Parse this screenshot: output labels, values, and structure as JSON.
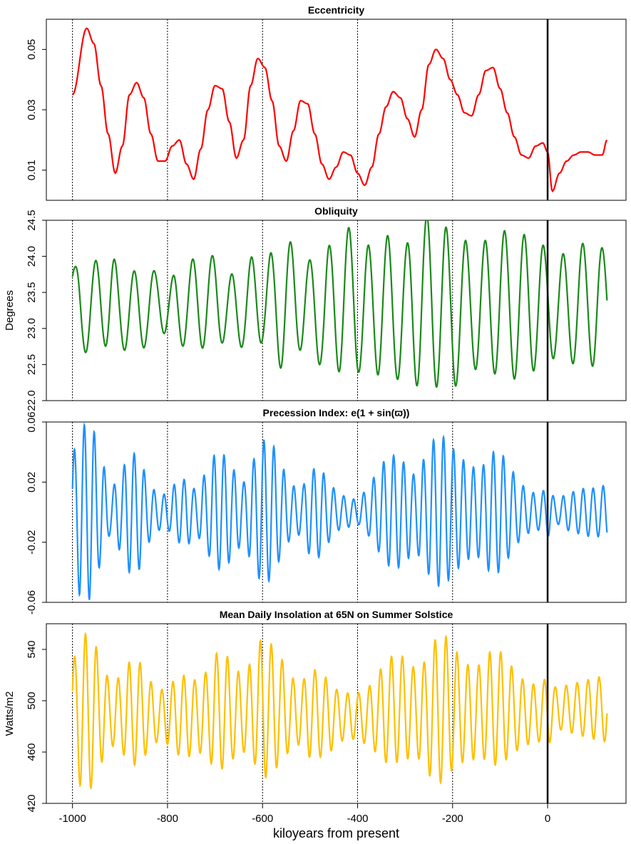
{
  "chart_data": [
    {
      "type": "line",
      "title": "Eccentricity",
      "ylabel": "",
      "ylim": [
        0.0,
        0.06
      ],
      "yticks": [
        0.01,
        0.03,
        0.05
      ],
      "ytick_labels": [
        "0.01",
        "0.03",
        "0.05"
      ],
      "color": "#ff0000",
      "series": [
        {
          "x": [
            -1000,
            -970,
            -955,
            -940,
            -925,
            -910,
            -895,
            -880,
            -865,
            -850,
            -835,
            -820,
            -805,
            -790,
            -775,
            -760,
            -745,
            -730,
            -715,
            -700,
            -685,
            -670,
            -655,
            -640,
            -625,
            -610,
            -595,
            -580,
            -565,
            -550,
            -535,
            -520,
            -505,
            -490,
            -475,
            -460,
            -445,
            -430,
            -415,
            -400,
            -385,
            -370,
            -355,
            -340,
            -325,
            -310,
            -295,
            -280,
            -265,
            -250,
            -235,
            -220,
            -205,
            -190,
            -175,
            -160,
            -145,
            -130,
            -115,
            -100,
            -85,
            -70,
            -55,
            -40,
            -25,
            -10,
            0,
            10,
            25,
            40,
            55,
            70,
            85,
            100,
            115,
            125
          ],
          "y": [
            0.035,
            0.057,
            0.052,
            0.038,
            0.022,
            0.009,
            0.018,
            0.035,
            0.039,
            0.034,
            0.022,
            0.013,
            0.013,
            0.018,
            0.02,
            0.012,
            0.007,
            0.017,
            0.03,
            0.038,
            0.037,
            0.026,
            0.014,
            0.02,
            0.038,
            0.047,
            0.044,
            0.033,
            0.018,
            0.013,
            0.023,
            0.033,
            0.032,
            0.022,
            0.012,
            0.007,
            0.011,
            0.016,
            0.015,
            0.009,
            0.005,
            0.011,
            0.022,
            0.031,
            0.036,
            0.034,
            0.027,
            0.021,
            0.03,
            0.045,
            0.05,
            0.047,
            0.04,
            0.035,
            0.029,
            0.028,
            0.035,
            0.043,
            0.044,
            0.037,
            0.029,
            0.021,
            0.015,
            0.014,
            0.018,
            0.019,
            0.016,
            0.003,
            0.009,
            0.013,
            0.015,
            0.016,
            0.016,
            0.015,
            0.015,
            0.02
          ]
        }
      ],
      "oscillation": null
    },
    {
      "type": "line",
      "title": "Obliquity",
      "ylabel": "Degrees",
      "ylim": [
        22.0,
        24.5
      ],
      "yticks": [
        22.0,
        22.5,
        23.0,
        23.5,
        24.0,
        24.5
      ],
      "ytick_labels": [
        "22.0",
        "22.5",
        "23.0",
        "23.5",
        "24.0",
        "24.5"
      ],
      "color": "#1a8a1a",
      "series": [
        {
          "x": [
            -1000,
            -980,
            -960,
            -940,
            -920,
            -900,
            -880,
            -860,
            -840,
            -820,
            -800,
            -780,
            -760,
            -740,
            -720,
            -700,
            -680,
            -660,
            -640,
            -620,
            -600,
            -580,
            -560,
            -540,
            -520,
            -500,
            -480,
            -460,
            -440,
            -420,
            -400,
            -380,
            -360,
            -340,
            -320,
            -300,
            -280,
            -260,
            -240,
            -220,
            -200,
            -180,
            -160,
            -140,
            -120,
            -100,
            -80,
            -60,
            -40,
            -20,
            0,
            20,
            40,
            60,
            80,
            100,
            125
          ],
          "y": [
            23.6,
            23.2,
            23.3,
            23.4,
            23.4,
            23.2,
            23.3,
            23.2,
            23.3,
            23.4,
            23.3,
            23.2,
            23.4,
            23.3,
            23.4,
            23.4,
            23.3,
            23.2,
            23.3,
            23.4,
            23.4,
            23.3,
            23.3,
            23.4,
            23.4,
            23.3,
            23.2,
            23.3,
            23.3,
            23.5,
            23.3,
            23.2,
            23.3,
            23.4,
            23.2,
            23.2,
            23.3,
            23.4,
            23.4,
            23.3,
            23.2,
            23.3,
            23.3,
            23.3,
            23.3,
            23.4,
            23.3,
            23.3,
            23.3,
            23.4,
            23.3,
            23.3,
            23.3,
            23.3,
            23.4,
            23.3,
            23.4
          ],
          "amplitude": [
            0.3,
            0.55,
            0.6,
            0.6,
            0.7,
            0.55,
            0.55,
            0.55,
            0.5,
            0.4,
            0.4,
            0.55,
            0.6,
            0.65,
            0.65,
            0.6,
            0.5,
            0.55,
            0.55,
            0.6,
            0.6,
            0.75,
            0.85,
            0.8,
            0.7,
            0.65,
            0.7,
            0.85,
            0.9,
            0.9,
            0.9,
            0.95,
            0.95,
            0.9,
            0.9,
            0.95,
            1.1,
            1.15,
            1.2,
            1.15,
            1.05,
            0.95,
            0.85,
            0.9,
            0.95,
            1.0,
            1.0,
            1.0,
            1.0,
            0.9,
            0.75,
            0.7,
            0.75,
            0.8,
            0.8,
            0.85,
            0.7
          ]
        }
      ],
      "oscillation": {
        "period": 41
      }
    },
    {
      "type": "line",
      "title": "Precession Index:",
      "title_formula": "e(1 + sin(ϖ))",
      "ylabel": "",
      "ylim": [
        -0.06,
        0.06
      ],
      "yticks": [
        -0.06,
        -0.02,
        0.02,
        0.06
      ],
      "ytick_labels": [
        "-0.06",
        "-0.02",
        "0.02",
        "0.06"
      ],
      "color": "#1e90ff",
      "series": [
        {
          "x": [
            -1000,
            -980,
            -960,
            -940,
            -920,
            -900,
            -880,
            -860,
            -840,
            -820,
            -800,
            -780,
            -760,
            -740,
            -720,
            -700,
            -680,
            -660,
            -640,
            -620,
            -600,
            -580,
            -560,
            -540,
            -520,
            -500,
            -480,
            -460,
            -440,
            -420,
            -400,
            -380,
            -360,
            -340,
            -320,
            -300,
            -280,
            -260,
            -240,
            -220,
            -200,
            -180,
            -160,
            -140,
            -120,
            -100,
            -80,
            -60,
            -40,
            -20,
            0,
            20,
            40,
            60,
            80,
            100,
            125
          ],
          "y": [
            0.0,
            0.0,
            0.0,
            0.0,
            0.0,
            0.0,
            0.0,
            0.0,
            0.0,
            0.0,
            0.0,
            0.0,
            0.0,
            0.0,
            0.0,
            0.0,
            0.0,
            0.0,
            0.0,
            0.0,
            0.0,
            0.0,
            0.0,
            0.0,
            0.0,
            0.0,
            0.0,
            0.0,
            0.0,
            0.0,
            0.0,
            0.0,
            0.0,
            0.0,
            0.0,
            0.0,
            0.0,
            0.0,
            0.0,
            0.0,
            0.0,
            0.0,
            0.0,
            0.0,
            0.0,
            0.0,
            0.0,
            0.0,
            0.0,
            0.0,
            0.0,
            0.0,
            0.0,
            0.0,
            0.0,
            0.0,
            0.0
          ],
          "amplitude": [
            0.04,
            0.058,
            0.058,
            0.035,
            0.015,
            0.025,
            0.04,
            0.038,
            0.02,
            0.012,
            0.012,
            0.02,
            0.022,
            0.015,
            0.025,
            0.038,
            0.038,
            0.028,
            0.02,
            0.035,
            0.048,
            0.045,
            0.03,
            0.018,
            0.015,
            0.028,
            0.03,
            0.02,
            0.012,
            0.01,
            0.008,
            0.015,
            0.025,
            0.035,
            0.038,
            0.033,
            0.025,
            0.035,
            0.048,
            0.05,
            0.042,
            0.035,
            0.03,
            0.03,
            0.04,
            0.04,
            0.03,
            0.02,
            0.014,
            0.012,
            0.016,
            0.008,
            0.012,
            0.014,
            0.016,
            0.016,
            0.018
          ]
        }
      ],
      "oscillation": {
        "period": 21
      }
    },
    {
      "type": "line",
      "title": "Mean Daily Insolation at 65N on Summer Solstice",
      "ylabel": "Watts/m2",
      "ylim": [
        420,
        560
      ],
      "yticks": [
        420,
        460,
        500,
        540
      ],
      "ytick_labels": [
        "420",
        "460",
        "500",
        "540"
      ],
      "color": "#ffbf00",
      "series": [
        {
          "x": [
            -1000,
            -980,
            -960,
            -940,
            -920,
            -900,
            -880,
            -860,
            -840,
            -820,
            -800,
            -780,
            -760,
            -740,
            -720,
            -700,
            -680,
            -660,
            -640,
            -620,
            -600,
            -580,
            -560,
            -540,
            -520,
            -500,
            -480,
            -460,
            -440,
            -420,
            -400,
            -380,
            -360,
            -340,
            -320,
            -300,
            -280,
            -260,
            -240,
            -220,
            -200,
            -180,
            -160,
            -140,
            -120,
            -100,
            -80,
            -60,
            -40,
            -20,
            0,
            20,
            40,
            60,
            80,
            100,
            125
          ],
          "y": [
            492,
            492,
            492,
            492,
            490,
            490,
            490,
            490,
            488,
            488,
            488,
            488,
            488,
            488,
            490,
            492,
            492,
            490,
            490,
            492,
            494,
            494,
            492,
            490,
            490,
            490,
            490,
            488,
            488,
            488,
            488,
            488,
            490,
            492,
            494,
            494,
            492,
            490,
            492,
            494,
            494,
            492,
            490,
            492,
            494,
            494,
            492,
            490,
            490,
            490,
            492,
            494,
            494,
            494,
            494,
            494,
            494
          ],
          "amplitude": [
            40,
            60,
            60,
            40,
            25,
            28,
            40,
            40,
            28,
            20,
            22,
            30,
            32,
            28,
            32,
            45,
            45,
            35,
            30,
            40,
            55,
            50,
            40,
            28,
            24,
            34,
            34,
            28,
            20,
            18,
            18,
            22,
            30,
            40,
            42,
            40,
            34,
            40,
            55,
            58,
            48,
            40,
            36,
            36,
            44,
            44,
            36,
            28,
            24,
            22,
            26,
            16,
            18,
            20,
            22,
            24,
            26
          ]
        }
      ],
      "oscillation": {
        "period": 23
      }
    }
  ],
  "xaxis": {
    "label": "kiloyears from present",
    "xlim": [
      -1055,
      165
    ],
    "ticks": [
      -1000,
      -800,
      -600,
      -400,
      -200,
      0
    ],
    "tick_labels": [
      "-1000",
      "-800",
      "-600",
      "-400",
      "-200",
      "0"
    ],
    "dotted_gridlines": [
      -1000,
      -800,
      -600,
      -400,
      -200
    ],
    "present_line": 0
  }
}
